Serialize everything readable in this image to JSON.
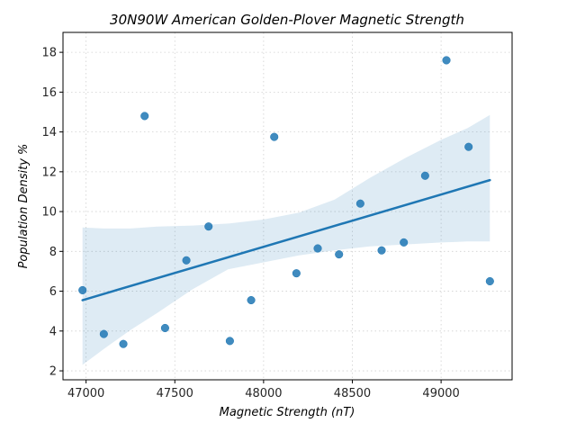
{
  "chart_data": {
    "type": "scatter",
    "title": "30N90W American Golden-Plover Magnetic Strength",
    "xlabel": "Magnetic Strength (nT)",
    "ylabel": "Population Density %",
    "xlim": [
      46870,
      49400
    ],
    "ylim": [
      1.55,
      19.0
    ],
    "xticks": [
      47000,
      47500,
      48000,
      48500,
      49000
    ],
    "xtick_labels": [
      "47000",
      "47500",
      "48000",
      "48500",
      "49000"
    ],
    "yticks": [
      2,
      4,
      6,
      8,
      10,
      12,
      14,
      16,
      18
    ],
    "ytick_labels": [
      "2",
      "4",
      "6",
      "8",
      "10",
      12,
      "14",
      "16",
      "18"
    ],
    "grid": true,
    "colors": {
      "points": "#1f77b4",
      "line": "#1f77b4",
      "band": "#1f77b4"
    },
    "points": [
      {
        "x": 46980,
        "y": 6.05
      },
      {
        "x": 47100,
        "y": 3.85
      },
      {
        "x": 47210,
        "y": 3.35
      },
      {
        "x": 47330,
        "y": 14.8
      },
      {
        "x": 47445,
        "y": 4.15
      },
      {
        "x": 47565,
        "y": 7.55
      },
      {
        "x": 47690,
        "y": 9.25
      },
      {
        "x": 47810,
        "y": 3.5
      },
      {
        "x": 47930,
        "y": 5.55
      },
      {
        "x": 48060,
        "y": 13.75
      },
      {
        "x": 48185,
        "y": 6.9
      },
      {
        "x": 48305,
        "y": 8.15
      },
      {
        "x": 48425,
        "y": 7.85
      },
      {
        "x": 48545,
        "y": 10.4
      },
      {
        "x": 48665,
        "y": 8.05
      },
      {
        "x": 48790,
        "y": 8.45
      },
      {
        "x": 48910,
        "y": 11.8
      },
      {
        "x": 49030,
        "y": 17.6
      },
      {
        "x": 49155,
        "y": 13.25
      },
      {
        "x": 49275,
        "y": 6.5
      }
    ],
    "regression": {
      "x": [
        46980,
        49275
      ],
      "y": [
        5.55,
        11.58
      ]
    },
    "confidence_band": {
      "x": [
        46980,
        47100,
        47250,
        47400,
        47600,
        47800,
        48000,
        48200,
        48400,
        48600,
        48800,
        49000,
        49150,
        49275
      ],
      "upper": [
        9.2,
        9.15,
        9.15,
        9.25,
        9.3,
        9.4,
        9.6,
        9.95,
        10.6,
        11.7,
        12.7,
        13.6,
        14.2,
        14.85
      ],
      "lower": [
        2.3,
        3.1,
        4.05,
        4.9,
        6.1,
        7.1,
        7.45,
        7.8,
        8.05,
        8.25,
        8.35,
        8.45,
        8.5,
        8.5
      ]
    }
  }
}
